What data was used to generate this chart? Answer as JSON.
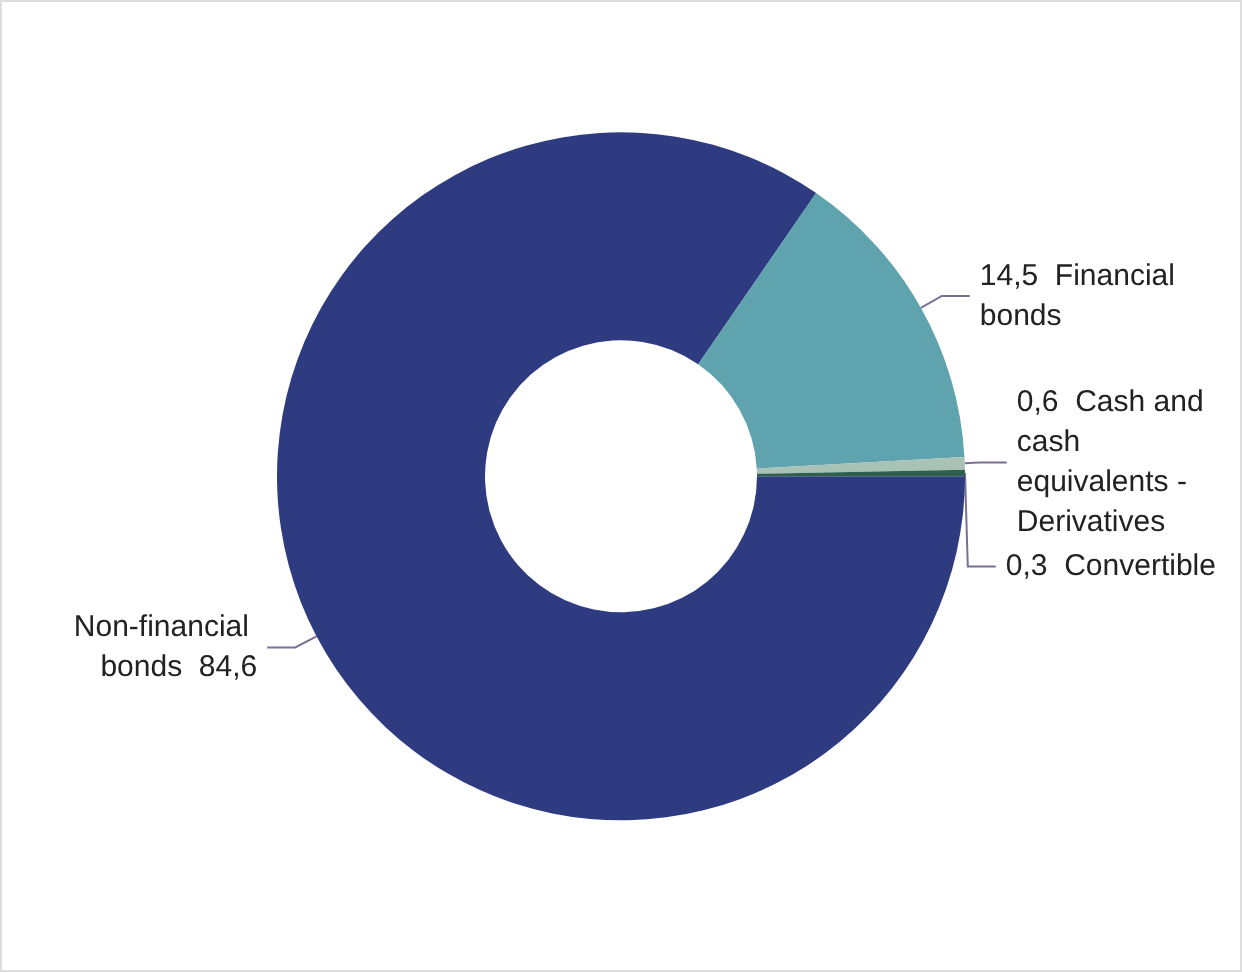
{
  "chart_data": {
    "type": "donut",
    "categories": [
      "Non-financial bonds",
      "Financial bonds",
      "Cash and cash equivalents - Derivatives",
      "Convertible"
    ],
    "values": [
      84.6,
      14.5,
      0.6,
      0.3
    ],
    "value_labels": [
      "84,6",
      "14,5",
      "0,6",
      "0,3"
    ],
    "colors": [
      "#2e3b80",
      "#5fa3ae",
      "#a8c2b6",
      "#2f5f4f"
    ],
    "legend": false
  }
}
